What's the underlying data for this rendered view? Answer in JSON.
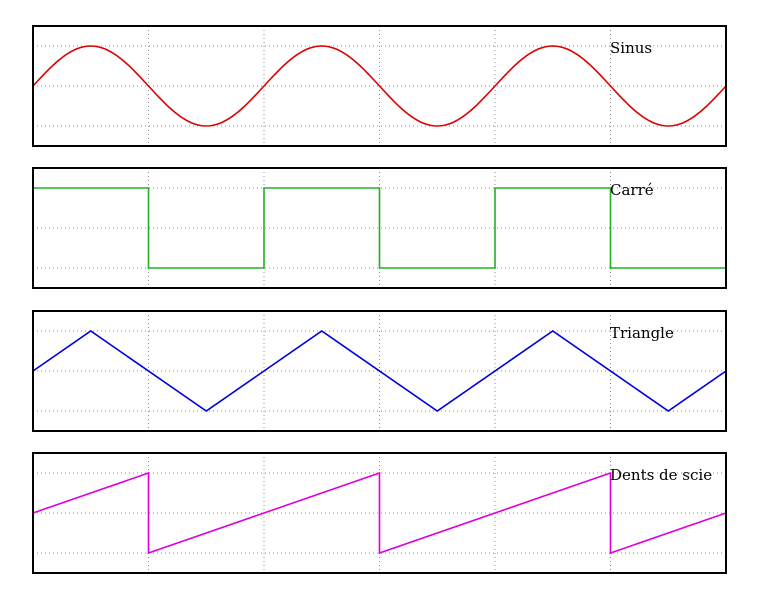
{
  "chart_data": [
    {
      "type": "line",
      "title": "Sinus",
      "color": "#dd0000",
      "grid": true,
      "xlim": [
        0,
        6
      ],
      "ylim": [
        -1.5,
        1.5
      ],
      "x": [
        0,
        0.25,
        0.5,
        0.75,
        1,
        1.25,
        1.5,
        1.75,
        2,
        2.25,
        2.5,
        2.75,
        3,
        3.25,
        3.5,
        3.75,
        4,
        4.25,
        4.5,
        4.75,
        5,
        5.25,
        5.5,
        5.75,
        6
      ],
      "y": [
        0,
        0.707,
        1,
        0.707,
        0,
        -0.707,
        -1,
        -0.707,
        0,
        0.707,
        1,
        0.707,
        0,
        -0.707,
        -1,
        -0.707,
        0,
        0.707,
        1,
        0.707,
        0,
        -0.707,
        -1,
        -0.707,
        0
      ]
    },
    {
      "type": "line",
      "title": "Carré",
      "color": "#22b022",
      "grid": true,
      "xlim": [
        0,
        6
      ],
      "ylim": [
        -1.5,
        1.5
      ],
      "x": [
        0,
        1,
        1,
        2,
        2,
        3,
        3,
        4,
        4,
        5,
        5,
        6
      ],
      "y": [
        1,
        1,
        -1,
        -1,
        1,
        1,
        -1,
        -1,
        1,
        1,
        -1,
        -1
      ]
    },
    {
      "type": "line",
      "title": "Triangle",
      "color": "#0000dd",
      "grid": true,
      "xlim": [
        0,
        6
      ],
      "ylim": [
        -1.5,
        1.5
      ],
      "x": [
        0,
        0.5,
        1.5,
        2.5,
        3.5,
        4.5,
        5.5,
        6
      ],
      "y": [
        0,
        1,
        -1,
        1,
        -1,
        1,
        -1,
        0
      ]
    },
    {
      "type": "line",
      "title": "Dents de scie",
      "color": "#dd00dd",
      "grid": true,
      "xlim": [
        0,
        6
      ],
      "ylim": [
        -1.5,
        1.5
      ],
      "x": [
        0,
        1,
        1,
        3,
        3,
        5,
        5,
        6
      ],
      "y": [
        0,
        1,
        -1,
        1,
        -1,
        1,
        -1,
        0
      ]
    }
  ]
}
